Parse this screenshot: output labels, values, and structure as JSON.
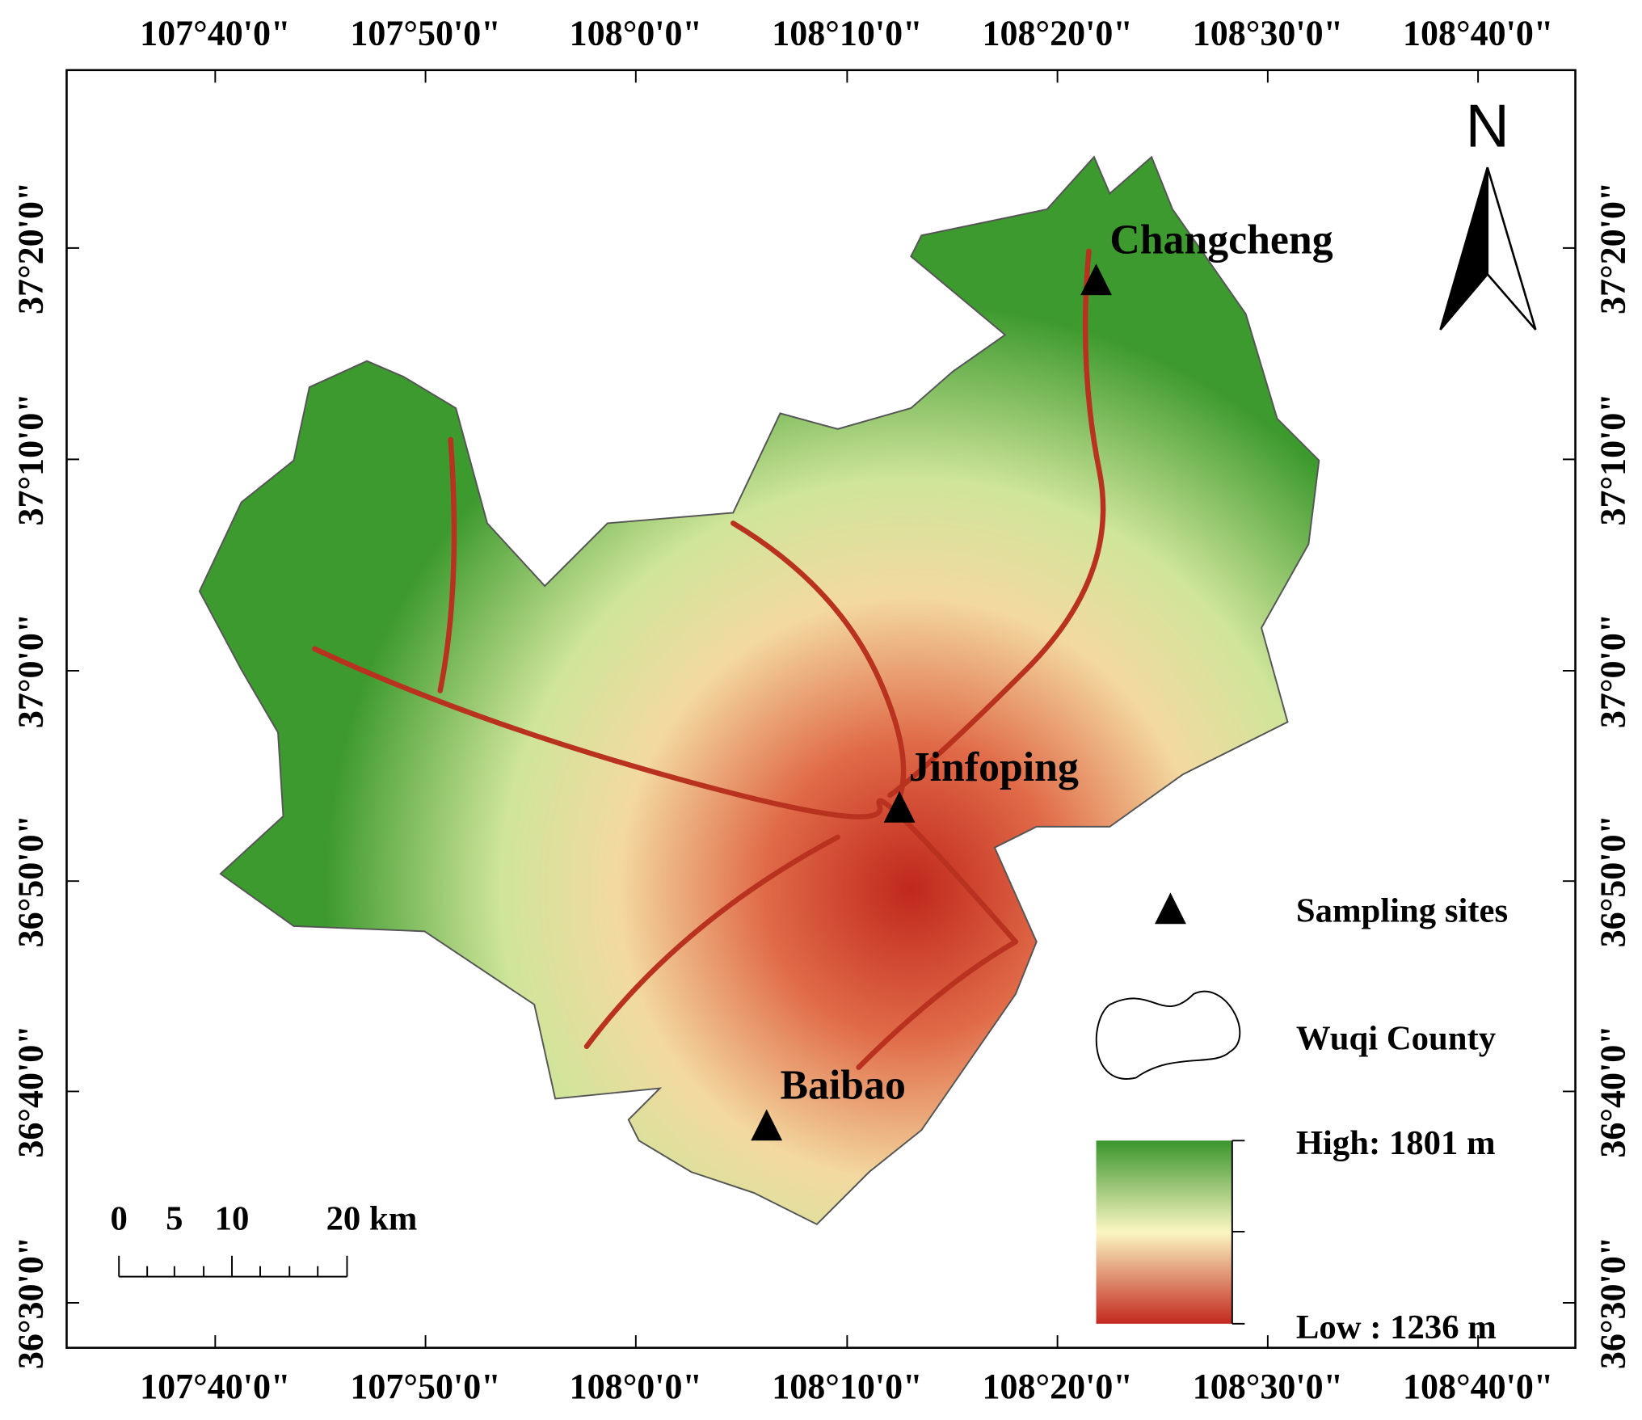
{
  "map": {
    "lon_labels": [
      "107°40'0\"",
      "107°50'0\"",
      "108°0'0\"",
      "108°10'0\"",
      "108°20'0\"",
      "108°30'0\"",
      "108°40'0\""
    ],
    "lat_labels": [
      "37°20'0\"",
      "37°10'0\"",
      "37°0'0\"",
      "36°50'0\"",
      "36°40'0\"",
      "36°30'0\""
    ],
    "north": "N",
    "sites": [
      {
        "label": "Changcheng"
      },
      {
        "label": "Jinfoping"
      },
      {
        "label": "Baibao"
      }
    ],
    "legend": {
      "sampling": "Sampling sites",
      "county": "Wuqi County",
      "high": "High: 1801 m",
      "low": "Low : 1236 m"
    },
    "scale": [
      "0",
      "5",
      "10",
      "20 km"
    ]
  }
}
